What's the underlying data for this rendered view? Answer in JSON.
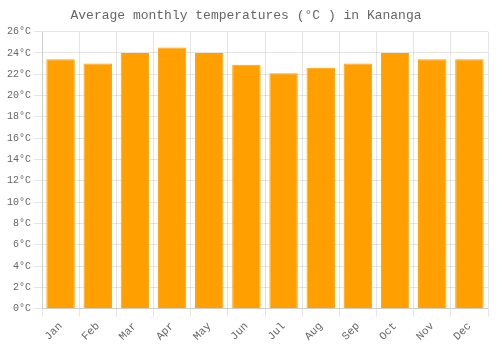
{
  "chart_data": {
    "type": "bar",
    "title": "Average monthly temperatures (°C ) in Kananga",
    "categories": [
      "Jan",
      "Feb",
      "Mar",
      "Apr",
      "May",
      "Jun",
      "Jul",
      "Aug",
      "Sep",
      "Oct",
      "Nov",
      "Dec"
    ],
    "values": [
      23.4,
      23.0,
      24.0,
      24.5,
      24.0,
      22.9,
      22.1,
      22.6,
      23.0,
      24.0,
      23.4,
      23.4
    ],
    "color": "#FFA000",
    "ylim": [
      0,
      26
    ],
    "yticks": [
      {
        "value": 0,
        "label": "0°C"
      },
      {
        "value": 2,
        "label": "2°C"
      },
      {
        "value": 4,
        "label": "4°C"
      },
      {
        "value": 6,
        "label": "6°C"
      },
      {
        "value": 8,
        "label": "8°C"
      },
      {
        "value": 10,
        "label": "10°C"
      },
      {
        "value": 12,
        "label": "12°C"
      },
      {
        "value": 14,
        "label": "14°C"
      },
      {
        "value": 16,
        "label": "16°C"
      },
      {
        "value": 18,
        "label": "18°C"
      },
      {
        "value": 20,
        "label": "20°C"
      },
      {
        "value": 22,
        "label": "22°C"
      },
      {
        "value": 24,
        "label": "24°C"
      },
      {
        "value": 26,
        "label": "26°C"
      }
    ],
    "grid": true
  }
}
